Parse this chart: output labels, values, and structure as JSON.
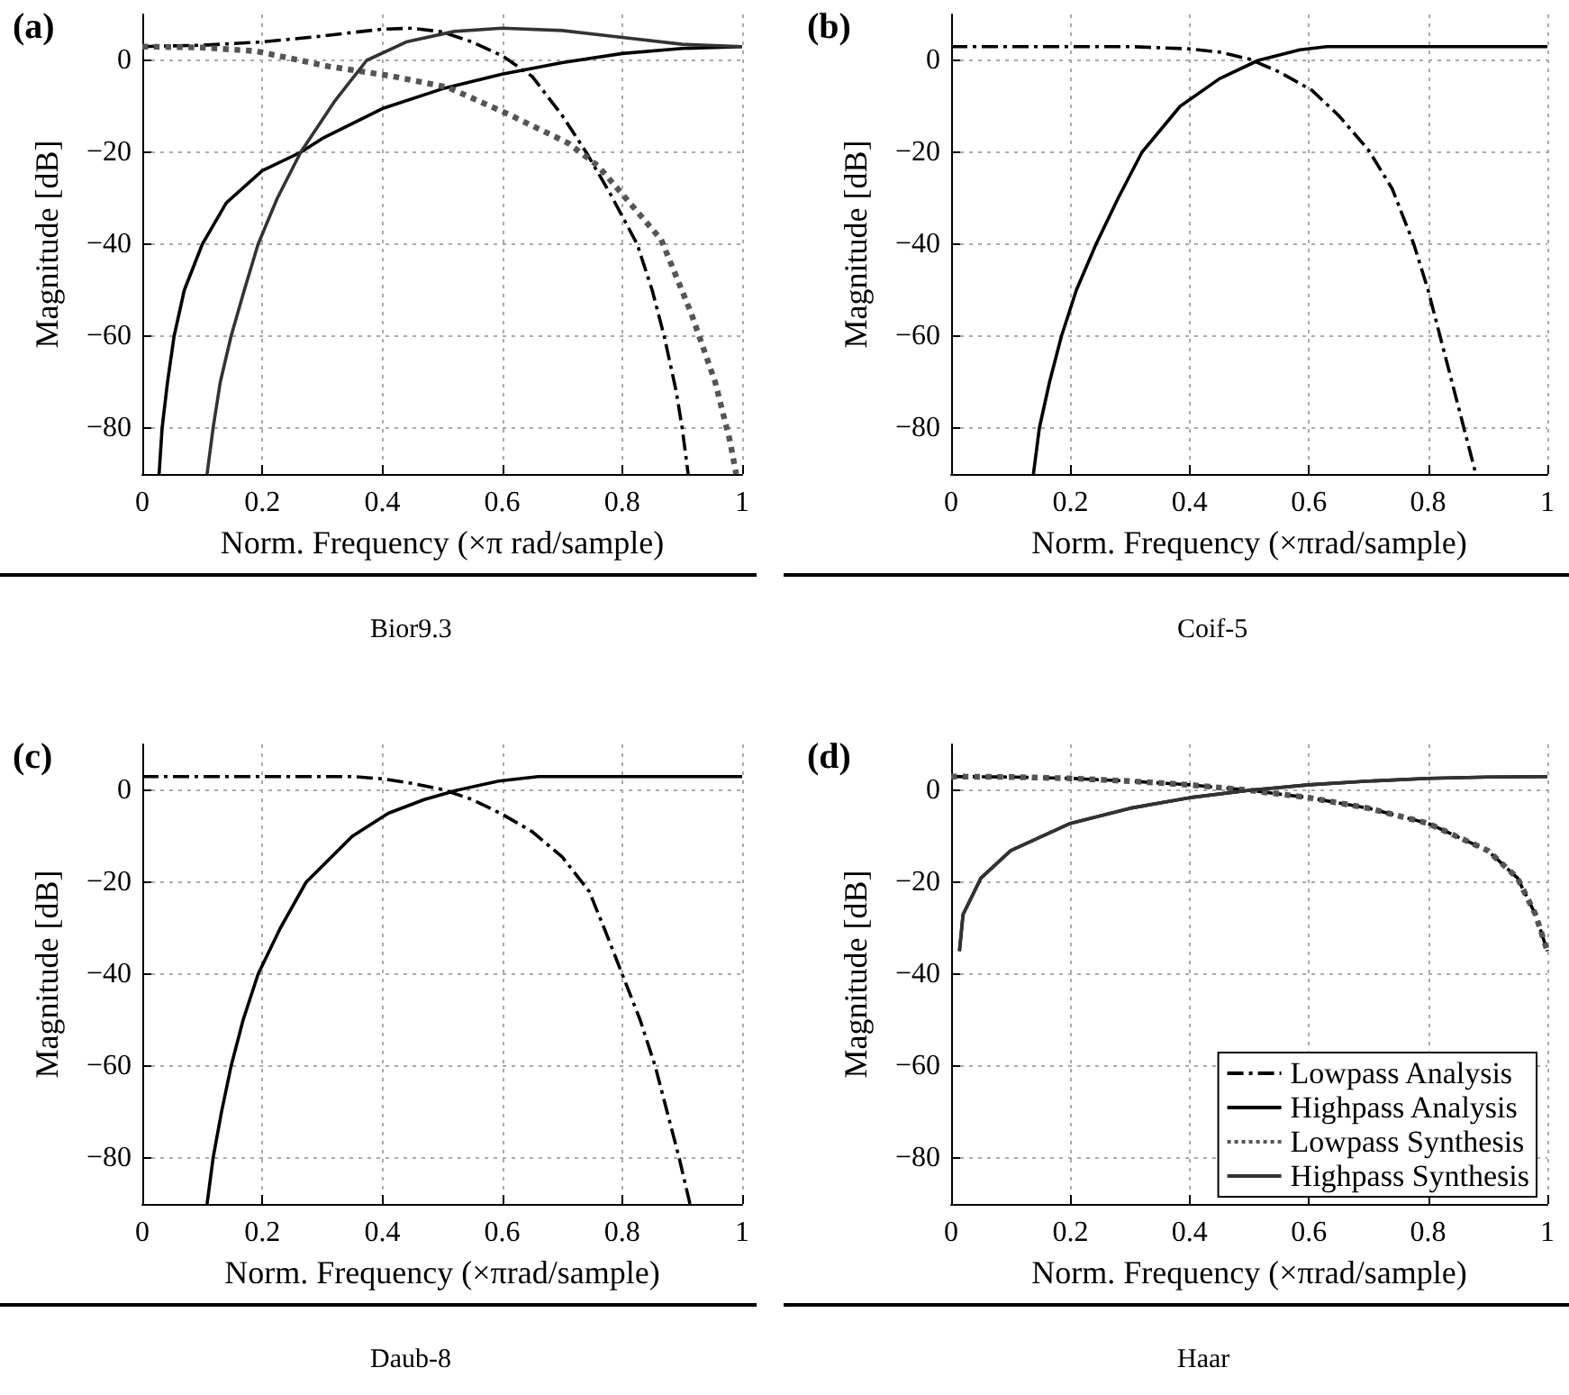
{
  "chart_data": [
    {
      "type": "line",
      "title": "(a)",
      "xlabel": "Norm. Frequency (×π rad/sample)",
      "ylabel": "Magnitude [dB]",
      "annotations": [
        "Bior9.3"
      ],
      "xlim": [
        0,
        1
      ],
      "xticks": [
        0,
        0.2,
        0.4,
        0.6,
        0.8,
        1
      ],
      "ylim": [
        -90,
        10
      ],
      "yticks": [
        {
          "value": -80,
          "label": "−80"
        },
        {
          "value": -60,
          "label": "−60"
        },
        {
          "value": -40,
          "label": "−40"
        },
        {
          "value": -20,
          "label": "−20"
        },
        {
          "value": 0,
          "label": "0"
        }
      ],
      "grid": true,
      "series": [
        {
          "color": "#000000",
          "line_style": "dashdot",
          "x": [
            0,
            0.1,
            0.2,
            0.3,
            0.4,
            0.45,
            0.5,
            0.55,
            0.6,
            0.65,
            0.7,
            0.74,
            0.78,
            0.825,
            0.85,
            0.87,
            0.89,
            0.9,
            0.91
          ],
          "values": [
            3,
            3.3,
            4,
            5.3,
            6.8,
            7,
            6.2,
            4,
            1,
            -3.5,
            -12,
            -20,
            -29,
            -40,
            -50,
            -60,
            -72,
            -80,
            -90
          ]
        },
        {
          "color": "#000000",
          "line_style": "solid",
          "x": [
            0.028,
            0.033,
            0.042,
            0.053,
            0.07,
            0.1,
            0.14,
            0.2,
            0.264,
            0.3,
            0.4,
            0.5,
            0.6,
            0.7,
            0.8,
            0.9,
            1
          ],
          "values": [
            -90,
            -80,
            -70,
            -60,
            -50,
            -40,
            -31,
            -24,
            -20,
            -17,
            -10.5,
            -6.2,
            -3,
            -0.5,
            1.5,
            2.6,
            3
          ]
        },
        {
          "color": "#555555",
          "line_style": "dotted",
          "x": [
            0,
            0.1,
            0.19,
            0.31,
            0.41,
            0.51,
            0.61,
            0.71,
            0.76,
            0.865,
            0.915,
            0.955,
            0.98,
            0.99
          ],
          "values": [
            3,
            2.8,
            2,
            -1.3,
            -3.3,
            -5.9,
            -11.7,
            -18,
            -23,
            -39,
            -55,
            -70,
            -83,
            -90
          ]
        },
        {
          "color": "#333333",
          "line_style": "solid",
          "x": [
            0.108,
            0.118,
            0.13,
            0.148,
            0.17,
            0.193,
            0.225,
            0.264,
            0.32,
            0.374,
            0.44,
            0.52,
            0.6,
            0.7,
            0.8,
            0.9,
            1
          ],
          "values": [
            -90,
            -80,
            -70,
            -60,
            -50,
            -40,
            -30,
            -20,
            -9,
            0,
            4,
            6.3,
            7,
            6.5,
            5,
            3.5,
            3
          ]
        }
      ]
    },
    {
      "type": "line",
      "title": "(b)",
      "xlabel": "Norm. Frequency (×πrad/sample)",
      "ylabel": "Magnitude [dB]",
      "annotations": [
        "Coif-5"
      ],
      "xlim": [
        0,
        1
      ],
      "xticks": [
        0,
        0.2,
        0.4,
        0.6,
        0.8,
        1
      ],
      "ylim": [
        -90,
        10
      ],
      "yticks": [
        {
          "value": -80,
          "label": "−80"
        },
        {
          "value": -60,
          "label": "−60"
        },
        {
          "value": -40,
          "label": "−40"
        },
        {
          "value": -20,
          "label": "−20"
        },
        {
          "value": 0,
          "label": "0"
        }
      ],
      "grid": true,
      "series": [
        {
          "color": "#000000",
          "line_style": "dashdot",
          "x": [
            0,
            0.3,
            0.4,
            0.45,
            0.5,
            0.55,
            0.605,
            0.65,
            0.7,
            0.74,
            0.776,
            0.8,
            0.82,
            0.84,
            0.86,
            0.88
          ],
          "values": [
            3,
            3,
            2.5,
            1.8,
            0.3,
            -2.5,
            -6.5,
            -12,
            -19.5,
            -28,
            -40,
            -50,
            -60,
            -70,
            -80,
            -90
          ]
        },
        {
          "color": "#000000",
          "line_style": "solid",
          "x": [
            0.138,
            0.148,
            0.165,
            0.185,
            0.21,
            0.243,
            0.28,
            0.32,
            0.384,
            0.45,
            0.515,
            0.585,
            0.63,
            1
          ],
          "values": [
            -90,
            -80,
            -70,
            -60,
            -50,
            -40,
            -30,
            -20,
            -10,
            -4,
            0,
            2.3,
            3,
            3
          ]
        }
      ]
    },
    {
      "type": "line",
      "title": "(c)",
      "xlabel": "Norm. Frequency (×πrad/sample)",
      "ylabel": "Magnitude [dB]",
      "annotations": [
        "Daub-8"
      ],
      "xlim": [
        0,
        1
      ],
      "xticks": [
        0,
        0.2,
        0.4,
        0.6,
        0.8,
        1
      ],
      "ylim": [
        -90,
        10
      ],
      "yticks": [
        {
          "value": -80,
          "label": "−80"
        },
        {
          "value": -60,
          "label": "−60"
        },
        {
          "value": -40,
          "label": "−40"
        },
        {
          "value": -20,
          "label": "−20"
        },
        {
          "value": 0,
          "label": "0"
        }
      ],
      "grid": true,
      "series": [
        {
          "color": "#000000",
          "line_style": "dashdot",
          "x": [
            0,
            0.35,
            0.4,
            0.45,
            0.5,
            0.55,
            0.6,
            0.65,
            0.7,
            0.745,
            0.77,
            0.8,
            0.83,
            0.855,
            0.875,
            0.895,
            0.913
          ],
          "values": [
            3,
            3,
            2.5,
            1.5,
            0.2,
            -2,
            -5.2,
            -9,
            -14.5,
            -22,
            -30,
            -40,
            -50,
            -60,
            -70,
            -80,
            -90
          ]
        },
        {
          "color": "#000000",
          "line_style": "solid",
          "x": [
            0.108,
            0.118,
            0.132,
            0.148,
            0.168,
            0.193,
            0.23,
            0.273,
            0.35,
            0.41,
            0.47,
            0.524,
            0.594,
            0.66,
            1
          ],
          "values": [
            -90,
            -80,
            -70,
            -60,
            -50,
            -40,
            -30,
            -20,
            -10,
            -5,
            -2,
            0,
            2,
            3,
            3
          ]
        }
      ]
    },
    {
      "type": "line",
      "title": "(d)",
      "xlabel": "Norm. Frequency (×πrad/sample)",
      "ylabel": "Magnitude [dB]",
      "annotations": [
        "Haar"
      ],
      "xlim": [
        0,
        1
      ],
      "xticks": [
        0,
        0.2,
        0.4,
        0.6,
        0.8,
        1
      ],
      "ylim": [
        -90,
        10
      ],
      "yticks": [
        {
          "value": -80,
          "label": "−80"
        },
        {
          "value": -60,
          "label": "−60"
        },
        {
          "value": -40,
          "label": "−40"
        },
        {
          "value": -20,
          "label": "−20"
        },
        {
          "value": 0,
          "label": "0"
        }
      ],
      "grid": true,
      "legend": "bottom right",
      "series": [
        {
          "name": "Lowpass Analysis",
          "color": "#000000",
          "line_style": "dashdot",
          "x": [
            0,
            0.1,
            0.2,
            0.3,
            0.4,
            0.5,
            0.6,
            0.7,
            0.8,
            0.9,
            0.95,
            0.98,
            0.99,
            1
          ],
          "values": [
            3,
            2.9,
            2.6,
            2,
            1.2,
            0,
            -1.6,
            -3.9,
            -7.2,
            -13.1,
            -19.1,
            -27,
            -31,
            -35
          ]
        },
        {
          "name": "Highpass Analysis",
          "color": "#000000",
          "line_style": "solid",
          "x": [
            0.014,
            0.02,
            0.05,
            0.1,
            0.2,
            0.3,
            0.4,
            0.5,
            0.6,
            0.7,
            0.8,
            0.9,
            1
          ],
          "values": [
            -35,
            -27,
            -19.1,
            -13.1,
            -7.2,
            -3.9,
            -1.6,
            0,
            1.2,
            2,
            2.6,
            2.9,
            3
          ]
        },
        {
          "name": "Lowpass Synthesis",
          "color": "#555555",
          "line_style": "dotted",
          "x": [
            0,
            0.1,
            0.2,
            0.3,
            0.4,
            0.5,
            0.6,
            0.7,
            0.8,
            0.9,
            0.95,
            0.98,
            0.99,
            1
          ],
          "values": [
            3,
            2.9,
            2.6,
            2,
            1.2,
            0,
            -1.6,
            -3.9,
            -7.2,
            -13.1,
            -19.1,
            -27,
            -31,
            -35
          ]
        },
        {
          "name": "Highpass Synthesis",
          "color": "#333333",
          "line_style": "solid",
          "x": [
            0.014,
            0.02,
            0.05,
            0.1,
            0.2,
            0.3,
            0.4,
            0.5,
            0.6,
            0.7,
            0.8,
            0.9,
            1
          ],
          "values": [
            -35,
            -27,
            -19.1,
            -13.1,
            -7.2,
            -3.9,
            -1.6,
            0,
            1.2,
            2,
            2.6,
            2.9,
            3
          ]
        }
      ]
    }
  ]
}
